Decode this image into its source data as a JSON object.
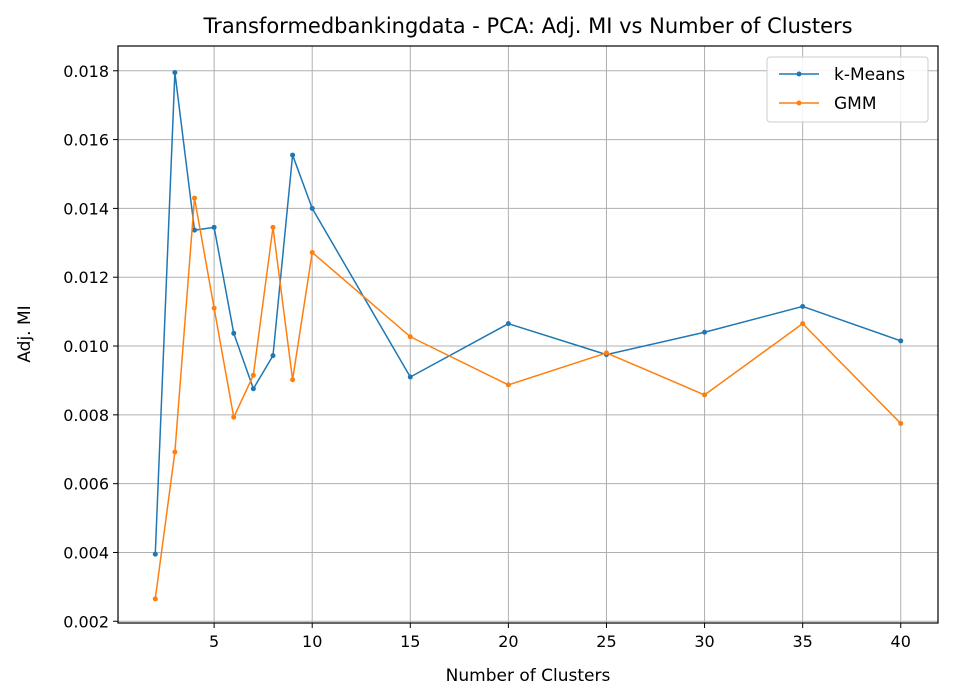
{
  "chart_data": {
    "type": "line",
    "title": "Transformedbankingdata - PCA: Adj. MI vs Number of Clusters",
    "xlabel": "Number of Clusters",
    "ylabel": "Adj. MI",
    "xlim": [
      0.1,
      41.9
    ],
    "ylim": [
      0.00195,
      0.01872
    ],
    "xticks": [
      5,
      10,
      15,
      20,
      25,
      30,
      35,
      40
    ],
    "xtick_labels": [
      "5",
      "10",
      "15",
      "20",
      "25",
      "30",
      "35",
      "40"
    ],
    "yticks": [
      0.002,
      0.004,
      0.006,
      0.008,
      0.01,
      0.012,
      0.014,
      0.016,
      0.018
    ],
    "ytick_labels": [
      "0.002",
      "0.004",
      "0.006",
      "0.008",
      "0.010",
      "0.012",
      "0.014",
      "0.016",
      "0.018"
    ],
    "grid": true,
    "legend_position": "top-right",
    "x": [
      2,
      3,
      4,
      5,
      6,
      7,
      8,
      9,
      10,
      15,
      20,
      25,
      30,
      35,
      40
    ],
    "series": [
      {
        "name": "k-Means",
        "color": "#1f77b4",
        "values": [
          0.00395,
          0.01795,
          0.01337,
          0.01345,
          0.01037,
          0.00876,
          0.00972,
          0.01555,
          0.014,
          0.0091,
          0.01065,
          0.00975,
          0.0104,
          0.01115,
          0.01015
        ]
      },
      {
        "name": "GMM",
        "color": "#ff7f0e",
        "values": [
          0.00265,
          0.00692,
          0.0143,
          0.0111,
          0.00793,
          0.00915,
          0.01345,
          0.00902,
          0.01272,
          0.01027,
          0.00887,
          0.0098,
          0.00858,
          0.01065,
          0.00775
        ]
      }
    ]
  }
}
